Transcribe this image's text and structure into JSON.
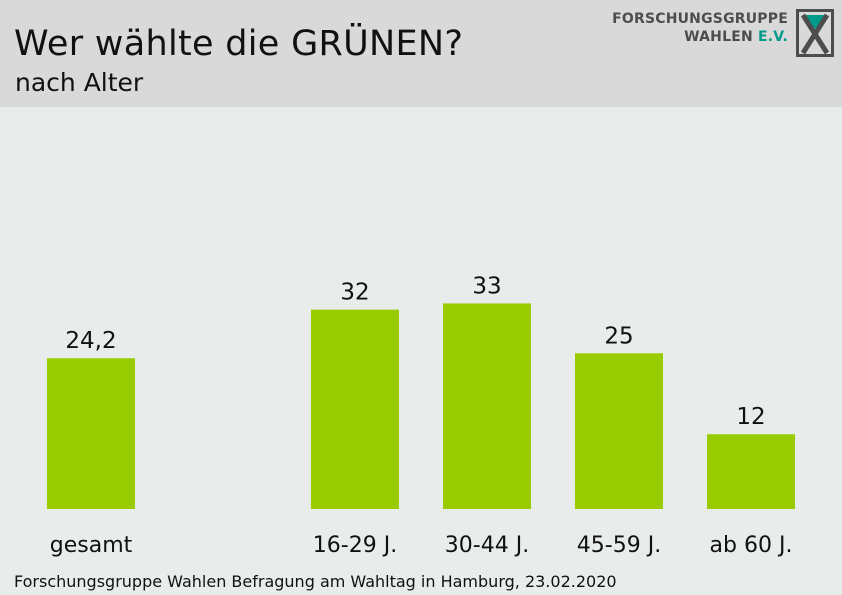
{
  "header": {
    "title": "Wer wählte die GRÜNEN?",
    "subtitle": "nach Alter"
  },
  "logo": {
    "line1": "FORSCHUNGSGRUPPE",
    "line2_main": "WAHLEN",
    "line2_accent": "E.V.",
    "accent_color": "#009a8a",
    "mark_icon": "x-ballot-icon"
  },
  "source": "Forschungsgruppe Wahlen Befragung am Wahltag in Hamburg, 23.02.2020",
  "colors": {
    "bar": "#99cc00",
    "header_bg": "#d9d9d9",
    "chart_bg": "#e8ecea"
  },
  "chart_data": {
    "type": "bar",
    "title": "Wer wählte die GRÜNEN?",
    "subtitle": "nach Alter",
    "categories": [
      "gesamt",
      "16-29 J.",
      "30-44 J.",
      "45-59 J.",
      "ab 60 J."
    ],
    "values": [
      24.2,
      32,
      33,
      25,
      12
    ],
    "value_labels": [
      "24,2",
      "32",
      "33",
      "25",
      "12"
    ],
    "xlabel": "",
    "ylabel": "",
    "ylim": [
      0,
      50
    ],
    "grid": false,
    "legend": "none"
  }
}
